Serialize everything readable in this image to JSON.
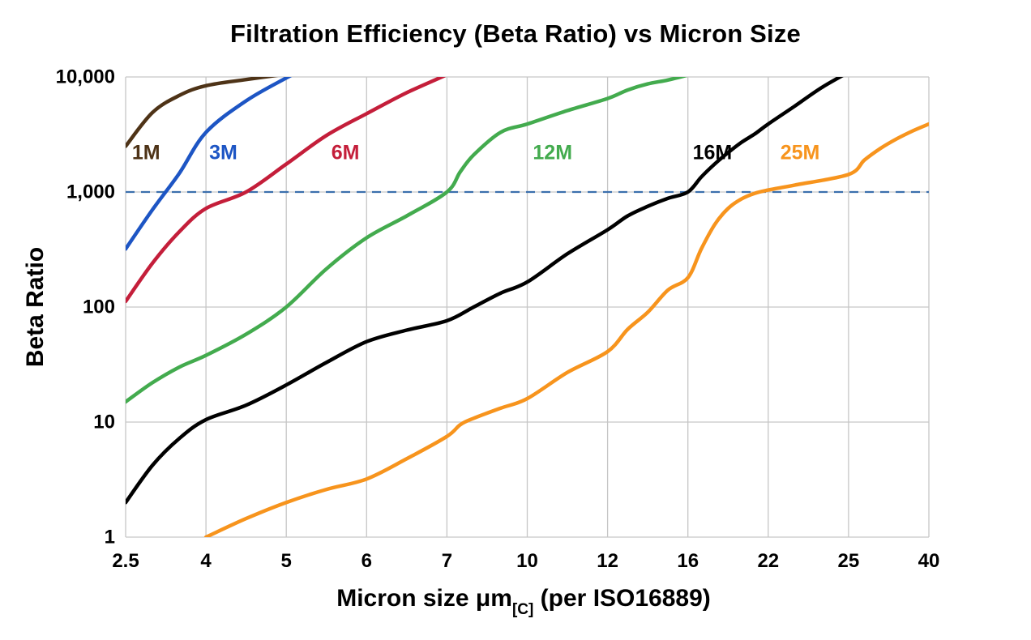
{
  "chart_data": {
    "type": "line",
    "title": "Filtration Efficiency (Beta Ratio) vs Micron Size",
    "ylabel": "Beta Ratio",
    "xlabel_prefix": "Micron size μm",
    "xlabel_subscript": "[C]",
    "xlabel_suffix": " (per ISO16889)",
    "y_scale": "log",
    "ylim": [
      1,
      10000
    ],
    "x_ticks": [
      2.5,
      4,
      5,
      6,
      7,
      10,
      12,
      16,
      22,
      25,
      40
    ],
    "x_tick_labels": [
      "2.5",
      "4",
      "5",
      "6",
      "7",
      "10",
      "12",
      "16",
      "22",
      "25",
      "40"
    ],
    "x_axis_note": "ticks evenly spaced",
    "y_ticks": [
      1,
      10,
      100,
      1000,
      10000
    ],
    "y_tick_labels": [
      "1",
      "10",
      "100",
      "1,000",
      "10,000"
    ],
    "grid": true,
    "grid_color": "#c6c6c6",
    "background": "#ffffff",
    "threshold_line": {
      "value": 1000,
      "color": "#3b6fad",
      "dash": "11 8",
      "width": 2.2
    },
    "series": [
      {
        "name": "1M",
        "color": "#4e3317",
        "width": 4.5,
        "label": {
          "text": "1M",
          "x": 2.62,
          "y": 2200
        },
        "points": [
          [
            2.5,
            2500
          ],
          [
            3,
            4900
          ],
          [
            3.5,
            6900
          ],
          [
            4,
            8400
          ],
          [
            4.5,
            9500
          ],
          [
            5,
            10600
          ]
        ]
      },
      {
        "name": "3M",
        "color": "#1d55c4",
        "width": 4.5,
        "label": {
          "text": "3M",
          "x": 4.04,
          "y": 2200
        },
        "points": [
          [
            2.5,
            320
          ],
          [
            3,
            700
          ],
          [
            3.5,
            1450
          ],
          [
            4,
            3300
          ],
          [
            4.5,
            6200
          ],
          [
            5,
            9800
          ],
          [
            5.3,
            12500
          ]
        ]
      },
      {
        "name": "6M",
        "color": "#c41e3a",
        "width": 4.5,
        "label": {
          "text": "6M",
          "x": 5.56,
          "y": 2200
        },
        "points": [
          [
            2.5,
            112
          ],
          [
            3,
            240
          ],
          [
            3.5,
            450
          ],
          [
            4,
            720
          ],
          [
            4.5,
            1000
          ],
          [
            5,
            1750
          ],
          [
            5.5,
            3100
          ],
          [
            6,
            4800
          ],
          [
            6.5,
            7300
          ],
          [
            7,
            10500
          ],
          [
            7.2,
            11500
          ]
        ]
      },
      {
        "name": "12M",
        "color": "#43ab4e",
        "width": 4.5,
        "label": {
          "text": "12M",
          "x": 10.14,
          "y": 2200
        },
        "points": [
          [
            2.5,
            15
          ],
          [
            3,
            22
          ],
          [
            3.5,
            30
          ],
          [
            4,
            38
          ],
          [
            4.5,
            58
          ],
          [
            5,
            100
          ],
          [
            5.5,
            215
          ],
          [
            6,
            400
          ],
          [
            6.5,
            620
          ],
          [
            7,
            1000
          ],
          [
            7.5,
            1500
          ],
          [
            8,
            2100
          ],
          [
            9,
            3300
          ],
          [
            10,
            3900
          ],
          [
            11,
            5100
          ],
          [
            12,
            6500
          ],
          [
            13,
            7700
          ],
          [
            14,
            8700
          ],
          [
            15,
            9400
          ],
          [
            16,
            10400
          ]
        ]
      },
      {
        "name": "16M",
        "color": "#000000",
        "width": 4.5,
        "label": {
          "text": "16M",
          "x": 16.36,
          "y": 2200
        },
        "points": [
          [
            2.5,
            2
          ],
          [
            3,
            4.2
          ],
          [
            3.5,
            7.2
          ],
          [
            4,
            10.5
          ],
          [
            4.5,
            14
          ],
          [
            5,
            21
          ],
          [
            5.5,
            33
          ],
          [
            6,
            50
          ],
          [
            6.5,
            63
          ],
          [
            7,
            76
          ],
          [
            8,
            100
          ],
          [
            9,
            132
          ],
          [
            10,
            165
          ],
          [
            11,
            290
          ],
          [
            12,
            470
          ],
          [
            13,
            620
          ],
          [
            14,
            750
          ],
          [
            15,
            880
          ],
          [
            16,
            1000
          ],
          [
            17,
            1350
          ],
          [
            18,
            1750
          ],
          [
            19,
            2200
          ],
          [
            20,
            2700
          ],
          [
            21,
            3200
          ],
          [
            22,
            3900
          ],
          [
            23,
            5600
          ],
          [
            24,
            8100
          ],
          [
            25,
            11000
          ]
        ]
      },
      {
        "name": "25M",
        "color": "#f7941d",
        "width": 4.5,
        "label": {
          "text": "25M",
          "x": 22.45,
          "y": 2200
        },
        "points": [
          [
            4,
            1
          ],
          [
            4.5,
            1.45
          ],
          [
            5,
            2
          ],
          [
            5.5,
            2.6
          ],
          [
            6,
            3.2
          ],
          [
            6.5,
            4.8
          ],
          [
            7,
            7.5
          ],
          [
            7.5,
            9.5
          ],
          [
            8,
            10.8
          ],
          [
            9,
            13.2
          ],
          [
            10,
            16
          ],
          [
            11,
            27
          ],
          [
            12,
            41
          ],
          [
            13,
            64
          ],
          [
            14,
            90
          ],
          [
            15,
            140
          ],
          [
            16,
            180
          ],
          [
            17,
            320
          ],
          [
            18,
            520
          ],
          [
            19,
            720
          ],
          [
            20,
            870
          ],
          [
            21,
            975
          ],
          [
            22,
            1040
          ],
          [
            23,
            1150
          ],
          [
            25,
            1420
          ],
          [
            28,
            1900
          ],
          [
            31,
            2400
          ],
          [
            34,
            2900
          ],
          [
            37,
            3400
          ],
          [
            40,
            3900
          ]
        ]
      }
    ]
  }
}
